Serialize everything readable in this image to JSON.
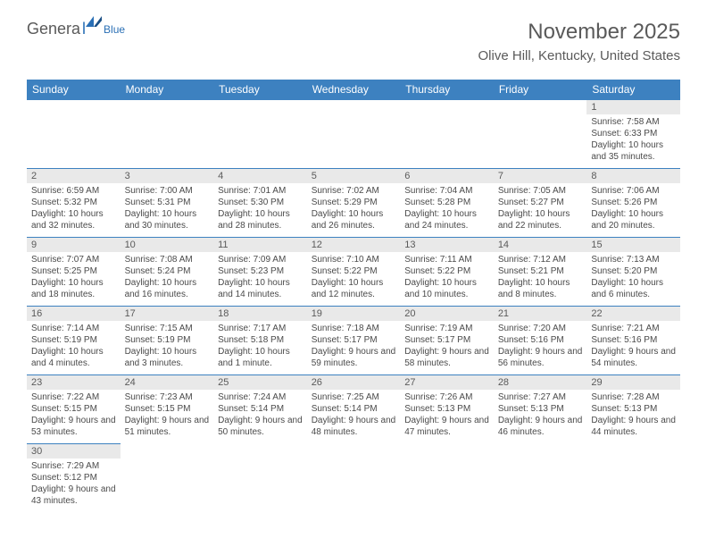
{
  "logo": {
    "part1": "Genera",
    "part2": "l",
    "part3": "Blue"
  },
  "title": "November 2025",
  "location": "Olive Hill, Kentucky, United States",
  "colors": {
    "header_bg": "#3d81c0",
    "header_text": "#ffffff",
    "daynum_bg": "#e9e9e9",
    "text_muted": "#5a5a5a",
    "border": "#3d81c0",
    "logo_gray": "#5a5a5a",
    "logo_blue": "#2a6fb5"
  },
  "day_headers": [
    "Sunday",
    "Monday",
    "Tuesday",
    "Wednesday",
    "Thursday",
    "Friday",
    "Saturday"
  ],
  "weeks": [
    [
      null,
      null,
      null,
      null,
      null,
      null,
      {
        "n": "1",
        "sr": "Sunrise: 7:58 AM",
        "ss": "Sunset: 6:33 PM",
        "dl": "Daylight: 10 hours and 35 minutes."
      }
    ],
    [
      {
        "n": "2",
        "sr": "Sunrise: 6:59 AM",
        "ss": "Sunset: 5:32 PM",
        "dl": "Daylight: 10 hours and 32 minutes."
      },
      {
        "n": "3",
        "sr": "Sunrise: 7:00 AM",
        "ss": "Sunset: 5:31 PM",
        "dl": "Daylight: 10 hours and 30 minutes."
      },
      {
        "n": "4",
        "sr": "Sunrise: 7:01 AM",
        "ss": "Sunset: 5:30 PM",
        "dl": "Daylight: 10 hours and 28 minutes."
      },
      {
        "n": "5",
        "sr": "Sunrise: 7:02 AM",
        "ss": "Sunset: 5:29 PM",
        "dl": "Daylight: 10 hours and 26 minutes."
      },
      {
        "n": "6",
        "sr": "Sunrise: 7:04 AM",
        "ss": "Sunset: 5:28 PM",
        "dl": "Daylight: 10 hours and 24 minutes."
      },
      {
        "n": "7",
        "sr": "Sunrise: 7:05 AM",
        "ss": "Sunset: 5:27 PM",
        "dl": "Daylight: 10 hours and 22 minutes."
      },
      {
        "n": "8",
        "sr": "Sunrise: 7:06 AM",
        "ss": "Sunset: 5:26 PM",
        "dl": "Daylight: 10 hours and 20 minutes."
      }
    ],
    [
      {
        "n": "9",
        "sr": "Sunrise: 7:07 AM",
        "ss": "Sunset: 5:25 PM",
        "dl": "Daylight: 10 hours and 18 minutes."
      },
      {
        "n": "10",
        "sr": "Sunrise: 7:08 AM",
        "ss": "Sunset: 5:24 PM",
        "dl": "Daylight: 10 hours and 16 minutes."
      },
      {
        "n": "11",
        "sr": "Sunrise: 7:09 AM",
        "ss": "Sunset: 5:23 PM",
        "dl": "Daylight: 10 hours and 14 minutes."
      },
      {
        "n": "12",
        "sr": "Sunrise: 7:10 AM",
        "ss": "Sunset: 5:22 PM",
        "dl": "Daylight: 10 hours and 12 minutes."
      },
      {
        "n": "13",
        "sr": "Sunrise: 7:11 AM",
        "ss": "Sunset: 5:22 PM",
        "dl": "Daylight: 10 hours and 10 minutes."
      },
      {
        "n": "14",
        "sr": "Sunrise: 7:12 AM",
        "ss": "Sunset: 5:21 PM",
        "dl": "Daylight: 10 hours and 8 minutes."
      },
      {
        "n": "15",
        "sr": "Sunrise: 7:13 AM",
        "ss": "Sunset: 5:20 PM",
        "dl": "Daylight: 10 hours and 6 minutes."
      }
    ],
    [
      {
        "n": "16",
        "sr": "Sunrise: 7:14 AM",
        "ss": "Sunset: 5:19 PM",
        "dl": "Daylight: 10 hours and 4 minutes."
      },
      {
        "n": "17",
        "sr": "Sunrise: 7:15 AM",
        "ss": "Sunset: 5:19 PM",
        "dl": "Daylight: 10 hours and 3 minutes."
      },
      {
        "n": "18",
        "sr": "Sunrise: 7:17 AM",
        "ss": "Sunset: 5:18 PM",
        "dl": "Daylight: 10 hours and 1 minute."
      },
      {
        "n": "19",
        "sr": "Sunrise: 7:18 AM",
        "ss": "Sunset: 5:17 PM",
        "dl": "Daylight: 9 hours and 59 minutes."
      },
      {
        "n": "20",
        "sr": "Sunrise: 7:19 AM",
        "ss": "Sunset: 5:17 PM",
        "dl": "Daylight: 9 hours and 58 minutes."
      },
      {
        "n": "21",
        "sr": "Sunrise: 7:20 AM",
        "ss": "Sunset: 5:16 PM",
        "dl": "Daylight: 9 hours and 56 minutes."
      },
      {
        "n": "22",
        "sr": "Sunrise: 7:21 AM",
        "ss": "Sunset: 5:16 PM",
        "dl": "Daylight: 9 hours and 54 minutes."
      }
    ],
    [
      {
        "n": "23",
        "sr": "Sunrise: 7:22 AM",
        "ss": "Sunset: 5:15 PM",
        "dl": "Daylight: 9 hours and 53 minutes."
      },
      {
        "n": "24",
        "sr": "Sunrise: 7:23 AM",
        "ss": "Sunset: 5:15 PM",
        "dl": "Daylight: 9 hours and 51 minutes."
      },
      {
        "n": "25",
        "sr": "Sunrise: 7:24 AM",
        "ss": "Sunset: 5:14 PM",
        "dl": "Daylight: 9 hours and 50 minutes."
      },
      {
        "n": "26",
        "sr": "Sunrise: 7:25 AM",
        "ss": "Sunset: 5:14 PM",
        "dl": "Daylight: 9 hours and 48 minutes."
      },
      {
        "n": "27",
        "sr": "Sunrise: 7:26 AM",
        "ss": "Sunset: 5:13 PM",
        "dl": "Daylight: 9 hours and 47 minutes."
      },
      {
        "n": "28",
        "sr": "Sunrise: 7:27 AM",
        "ss": "Sunset: 5:13 PM",
        "dl": "Daylight: 9 hours and 46 minutes."
      },
      {
        "n": "29",
        "sr": "Sunrise: 7:28 AM",
        "ss": "Sunset: 5:13 PM",
        "dl": "Daylight: 9 hours and 44 minutes."
      }
    ],
    [
      {
        "n": "30",
        "sr": "Sunrise: 7:29 AM",
        "ss": "Sunset: 5:12 PM",
        "dl": "Daylight: 9 hours and 43 minutes."
      },
      null,
      null,
      null,
      null,
      null,
      null
    ]
  ]
}
